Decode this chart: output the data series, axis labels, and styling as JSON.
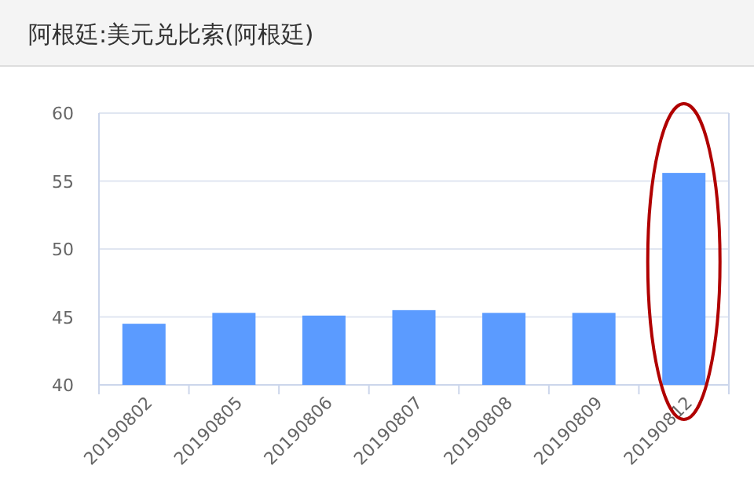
{
  "chart_data": {
    "type": "bar",
    "title": "阿根廷:美元兑比索(阿根廷)",
    "categories": [
      "20190802",
      "20190805",
      "20190806",
      "20190807",
      "20190808",
      "20190809",
      "20190812"
    ],
    "values": [
      44.5,
      45.3,
      45.1,
      45.5,
      45.3,
      45.3,
      55.6
    ],
    "color": "#5b9bff",
    "ylim": [
      40,
      60
    ],
    "yticks": [
      40,
      45,
      50,
      55,
      60
    ],
    "grid": "y"
  }
}
